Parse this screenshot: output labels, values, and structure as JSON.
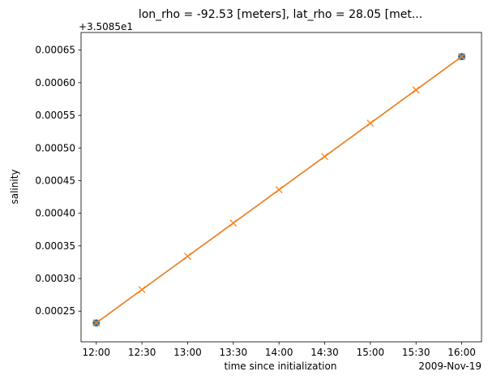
{
  "chart_data": {
    "type": "line",
    "title": "lon_rho = -92.53 [meters], lat_rho = 28.05 [met...",
    "x_label": "time since initialization",
    "y_label": "salinity",
    "y_offset_label": "+3.5085e1",
    "x_offset_label": "2009-Nov-19",
    "xlim": [
      "2009-11-19T11:50",
      "2009-11-19T16:13"
    ],
    "ylim": [
      0.000203,
      0.000677
    ],
    "xticks": [
      {
        "value": "2009-11-19T12:00",
        "label": "12:00"
      },
      {
        "value": "2009-11-19T12:30",
        "label": "12:30"
      },
      {
        "value": "2009-11-19T13:00",
        "label": "13:00"
      },
      {
        "value": "2009-11-19T13:30",
        "label": "13:30"
      },
      {
        "value": "2009-11-19T14:00",
        "label": "14:00"
      },
      {
        "value": "2009-11-19T14:30",
        "label": "14:30"
      },
      {
        "value": "2009-11-19T15:00",
        "label": "15:00"
      },
      {
        "value": "2009-11-19T15:30",
        "label": "15:30"
      },
      {
        "value": "2009-11-19T16:00",
        "label": "16:00"
      }
    ],
    "yticks": [
      {
        "value": 0.00025,
        "label": "0.00025"
      },
      {
        "value": 0.0003,
        "label": "0.00030"
      },
      {
        "value": 0.00035,
        "label": "0.00035"
      },
      {
        "value": 0.0004,
        "label": "0.00040"
      },
      {
        "value": 0.00045,
        "label": "0.00045"
      },
      {
        "value": 0.0005,
        "label": "0.00050"
      },
      {
        "value": 0.00055,
        "label": "0.00055"
      },
      {
        "value": 0.0006,
        "label": "0.00060"
      },
      {
        "value": 0.00065,
        "label": "0.00065"
      }
    ],
    "series": [
      {
        "color": "#1f77b4",
        "marker": "o",
        "x": [
          "2009-11-19T12:00",
          "2009-11-19T16:00"
        ],
        "values": [
          0.000232,
          0.00064
        ]
      },
      {
        "color": "#ff7f0e",
        "marker": "x",
        "x": [
          "2009-11-19T12:00",
          "2009-11-19T12:30",
          "2009-11-19T13:00",
          "2009-11-19T13:30",
          "2009-11-19T14:00",
          "2009-11-19T14:30",
          "2009-11-19T15:00",
          "2009-11-19T15:30",
          "2009-11-19T16:00"
        ],
        "values": [
          0.000232,
          0.000283,
          0.000334,
          0.000385,
          0.000436,
          0.000487,
          0.000538,
          0.000589,
          0.00064
        ]
      }
    ]
  }
}
